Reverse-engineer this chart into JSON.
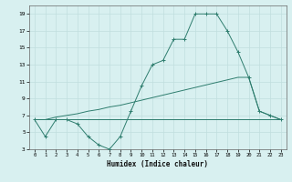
{
  "line1_x": [
    0,
    1,
    2,
    3,
    4,
    5,
    6,
    7,
    8,
    9,
    10,
    11,
    12,
    13,
    14,
    15,
    16,
    17,
    18,
    19,
    20,
    21,
    22,
    23
  ],
  "line1_y": [
    6.5,
    4.5,
    6.5,
    6.5,
    6.0,
    4.5,
    3.5,
    3.0,
    4.5,
    7.5,
    10.5,
    13.0,
    13.5,
    16.0,
    16.0,
    19.0,
    19.0,
    19.0,
    17.0,
    14.5,
    11.5,
    7.5,
    7.0,
    6.5
  ],
  "line2_x": [
    0,
    1,
    2,
    3,
    4,
    5,
    6,
    7,
    8,
    9,
    10,
    11,
    12,
    13,
    14,
    15,
    16,
    17,
    18,
    19,
    20,
    21,
    22,
    23
  ],
  "line2_y": [
    6.5,
    6.5,
    6.8,
    7.0,
    7.2,
    7.5,
    7.7,
    8.0,
    8.2,
    8.5,
    8.8,
    9.1,
    9.4,
    9.7,
    10.0,
    10.3,
    10.6,
    10.9,
    11.2,
    11.5,
    11.5,
    7.5,
    7.0,
    6.5
  ],
  "line3_x": [
    0,
    23
  ],
  "line3_y": [
    6.5,
    6.5
  ],
  "color": "#2e7d6e",
  "bg_color": "#d8f0f0",
  "grid_color": "#c0dede",
  "xlabel": "Humidex (Indice chaleur)",
  "xlim": [
    -0.5,
    23.5
  ],
  "ylim": [
    3,
    20
  ],
  "yticks": [
    3,
    5,
    7,
    9,
    11,
    13,
    15,
    17,
    19
  ],
  "xticks": [
    0,
    1,
    2,
    3,
    4,
    5,
    6,
    7,
    8,
    9,
    10,
    11,
    12,
    13,
    14,
    15,
    16,
    17,
    18,
    19,
    20,
    21,
    22,
    23
  ]
}
